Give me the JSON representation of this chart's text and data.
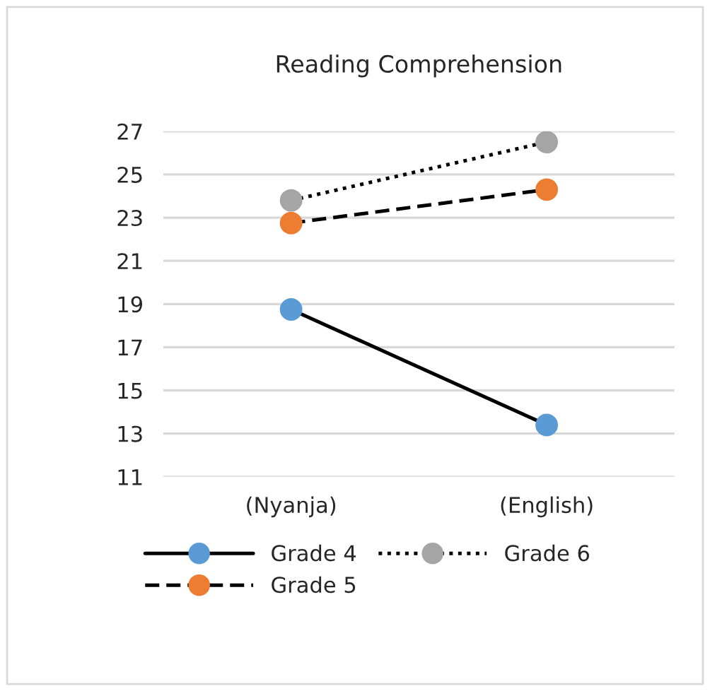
{
  "chart_data": {
    "type": "line",
    "title": "Reading Comprehension",
    "categories": [
      "(Nyanja)",
      "(English)"
    ],
    "series": [
      {
        "name": "Grade 4",
        "color": "#5b9bd5",
        "line_style": "solid",
        "values": [
          18.75,
          13.4
        ]
      },
      {
        "name": "Grade 5",
        "color": "#ed7d31",
        "line_style": "dashed",
        "values": [
          22.75,
          24.3
        ]
      },
      {
        "name": "Grade 6",
        "color": "#a5a5a5",
        "line_style": "dotted",
        "values": [
          23.8,
          26.5
        ]
      }
    ],
    "ylim": [
      11,
      27
    ],
    "yticks": [
      11,
      13,
      15,
      17,
      19,
      21,
      23,
      25,
      27
    ],
    "grid": "y",
    "legend": "bottom",
    "marker": "circle"
  }
}
